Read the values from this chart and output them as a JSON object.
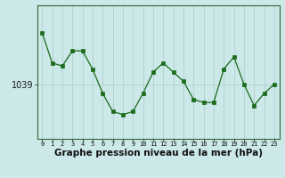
{
  "x": [
    0,
    1,
    2,
    3,
    4,
    5,
    6,
    7,
    8,
    9,
    10,
    11,
    12,
    13,
    14,
    15,
    16,
    17,
    18,
    19,
    20,
    21,
    22,
    23
  ],
  "y": [
    1047.5,
    1042.5,
    1042.0,
    1044.5,
    1044.5,
    1041.5,
    1037.5,
    1034.5,
    1034.0,
    1034.5,
    1037.5,
    1041.0,
    1042.5,
    1041.0,
    1039.5,
    1036.5,
    1036.0,
    1036.0,
    1041.5,
    1043.5,
    1039.0,
    1035.5,
    1037.5,
    1039.0
  ],
  "line_color": "#1a6b1a",
  "marker": "s",
  "marker_size": 2.5,
  "background_color": "#cce8e8",
  "grid_color": "#aacccc",
  "ytick_values": [
    1039
  ],
  "xlabel_label": "Graphe pression niveau de la mer (hPa)",
  "xlim": [
    -0.5,
    23.5
  ],
  "ylim": [
    1030,
    1052
  ],
  "xtick_labels": [
    "0",
    "1",
    "2",
    "3",
    "4",
    "5",
    "6",
    "7",
    "8",
    "9",
    "10",
    "11",
    "12",
    "13",
    "14",
    "15",
    "16",
    "17",
    "18",
    "19",
    "20",
    "21",
    "22",
    "23"
  ],
  "spine_color": "#336633",
  "xlabel_fontsize": 7.5,
  "ytick_fontsize": 7,
  "xtick_fontsize": 5
}
